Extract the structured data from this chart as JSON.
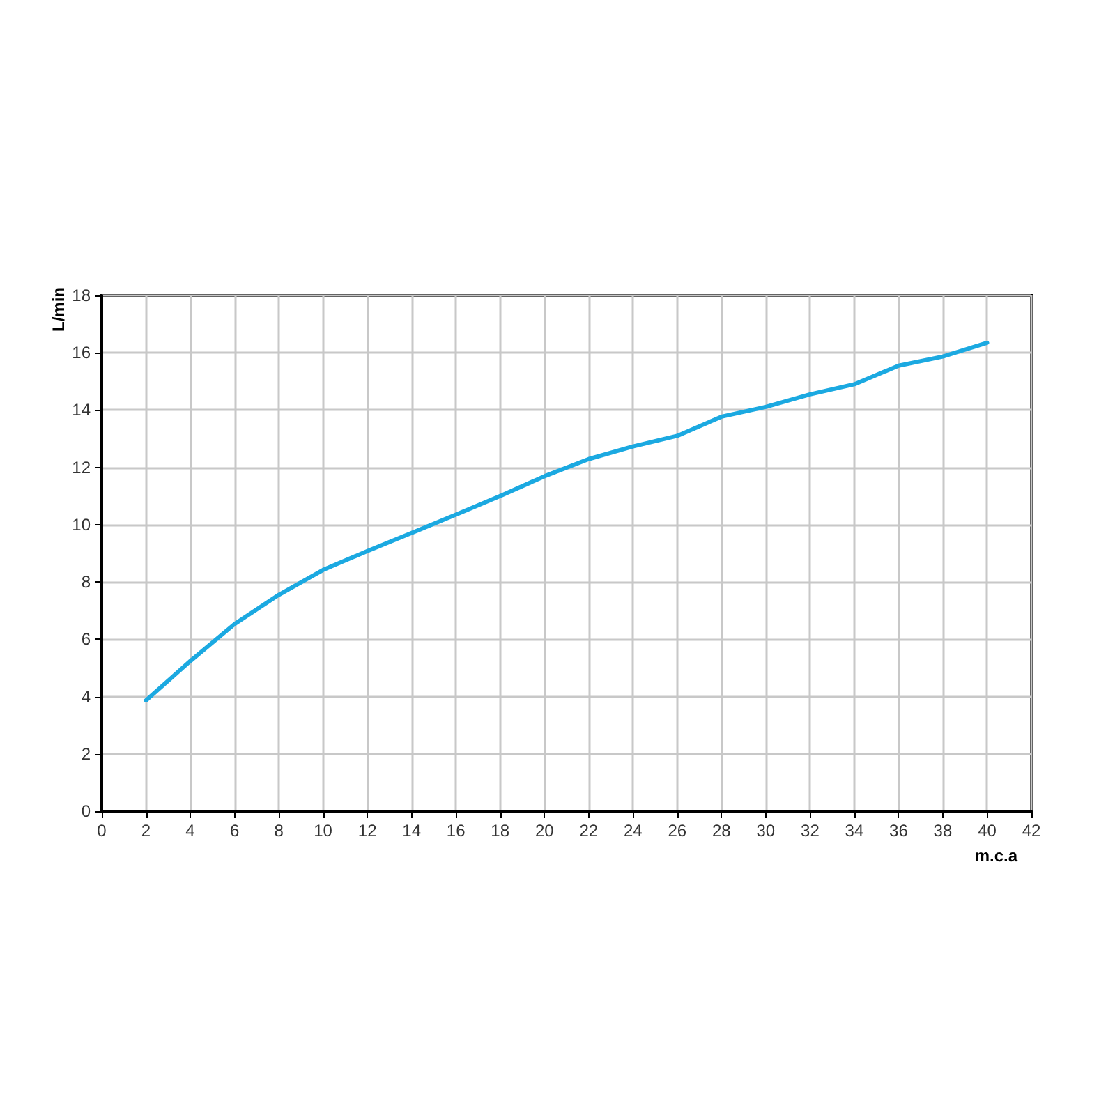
{
  "chart_data": {
    "type": "line",
    "xlabel": "m.c.a",
    "ylabel": "L/min",
    "x": [
      2,
      4,
      6,
      8,
      10,
      12,
      14,
      16,
      18,
      20,
      22,
      24,
      26,
      28,
      30,
      32,
      34,
      36,
      38,
      40
    ],
    "series": [
      {
        "color": "#1ba9e1",
        "values": [
          3.87,
          5.24,
          6.53,
          7.55,
          8.42,
          9.08,
          9.71,
          10.35,
          11.0,
          11.69,
          12.29,
          12.73,
          13.1,
          13.77,
          14.11,
          14.55,
          14.9,
          15.55,
          15.87,
          16.35
        ]
      }
    ],
    "xlim": [
      0,
      42
    ],
    "xticks": [
      0,
      2,
      4,
      6,
      8,
      10,
      12,
      14,
      16,
      18,
      20,
      22,
      24,
      26,
      28,
      30,
      32,
      34,
      36,
      38,
      40,
      42
    ],
    "ylim": [
      0,
      18
    ],
    "yticks": [
      0,
      2,
      4,
      6,
      8,
      10,
      12,
      14,
      16,
      18
    ],
    "grid": true,
    "marker": "none",
    "line_style": "solid"
  }
}
